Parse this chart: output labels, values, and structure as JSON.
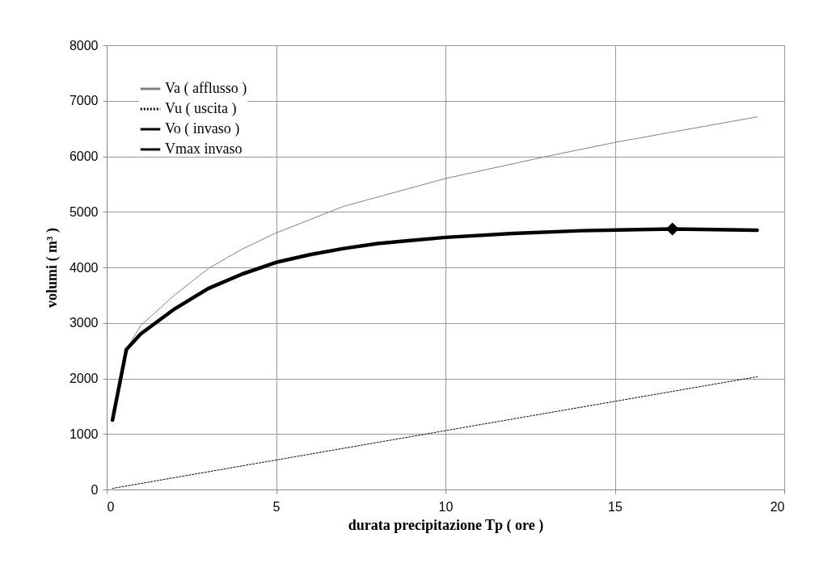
{
  "chart_data": {
    "type": "line",
    "xlabel": "durata precipitazione Tp ( ore )",
    "ylabel": "volumi ( m³ )",
    "xlim": [
      0,
      20
    ],
    "xticks": [
      0,
      5,
      10,
      15,
      20
    ],
    "ylim": [
      0,
      8000
    ],
    "yticks": [
      0,
      1000,
      2000,
      3000,
      4000,
      5000,
      6000,
      7000,
      8000
    ],
    "grid": true,
    "legend": "top left",
    "series": [
      {
        "name": "Va ( afflusso )",
        "color": "#808080",
        "line_style": "solid",
        "x": [
          0.58,
          1,
          2,
          3,
          4,
          5,
          7,
          10,
          13,
          15,
          17,
          19.2
        ],
        "values": [
          2520,
          2950,
          3500,
          3980,
          4330,
          4620,
          5100,
          5600,
          6000,
          6250,
          6470,
          6710
        ]
      },
      {
        "name": "Vu ( uscita )",
        "color": "#000000",
        "line_style": "dotted",
        "x": [
          0.17,
          10,
          19.2
        ],
        "values": [
          20,
          1060,
          2030
        ]
      },
      {
        "name": "Vo ( invaso )",
        "color": "#000000",
        "line_style": "solid",
        "x": [
          0.17,
          0.58,
          1,
          2,
          3,
          4,
          5,
          6,
          7,
          8,
          10,
          12,
          14,
          16.7,
          19.2
        ],
        "values": [
          1250,
          2520,
          2800,
          3250,
          3620,
          3880,
          4090,
          4230,
          4340,
          4430,
          4540,
          4610,
          4660,
          4690,
          4670
        ]
      },
      {
        "name": "Vmax invaso",
        "color": "#000000",
        "line_style": "solid",
        "marker": "diamond",
        "x": [
          16.7
        ],
        "values": [
          4690
        ]
      }
    ]
  }
}
